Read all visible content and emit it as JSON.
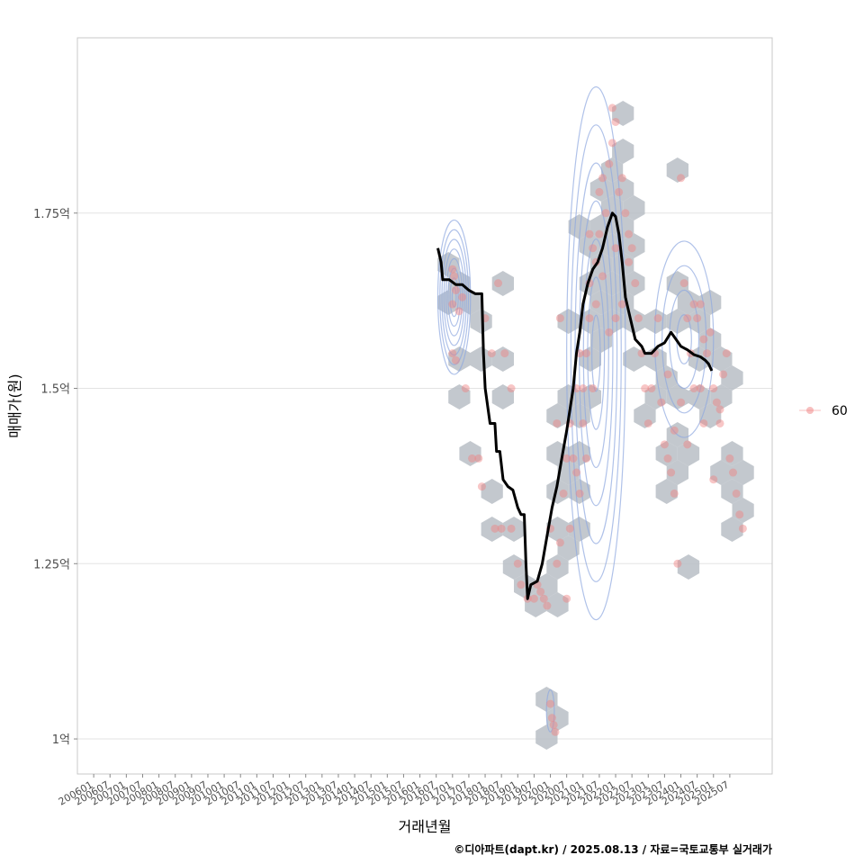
{
  "chart_data": {
    "type": "scatter",
    "title": "",
    "xlabel": "거래년월",
    "ylabel": "매매가(원)",
    "caption": "©디아파트(dapt.kr) / 2025.08.13 / 자료=국토교통부 실거래가",
    "ylim": [
      0.95,
      2.0
    ],
    "xlim": [
      2005.5,
      2026.8
    ],
    "y_ticks": [
      {
        "value": 1.0,
        "label": "1억"
      },
      {
        "value": 1.25,
        "label": "1.25억"
      },
      {
        "value": 1.5,
        "label": "1.5억"
      },
      {
        "value": 1.75,
        "label": "1.75억"
      }
    ],
    "x_ticks": [
      "200601",
      "200607",
      "200701",
      "200707",
      "200801",
      "200807",
      "200901",
      "200907",
      "201001",
      "201007",
      "201101",
      "201107",
      "201201",
      "201207",
      "201301",
      "201307",
      "201401",
      "201407",
      "201501",
      "201507",
      "201601",
      "201607",
      "201701",
      "201707",
      "201801",
      "201807",
      "201901",
      "201907",
      "202001",
      "202007",
      "202101",
      "202107",
      "202201",
      "202207",
      "202301",
      "202307",
      "202401",
      "202407",
      "202501",
      "202507"
    ],
    "legend": {
      "position": "right",
      "entries": [
        {
          "label": "60",
          "color": "#f08080"
        }
      ]
    },
    "colors": {
      "points": "#f08080",
      "trend": "#000000",
      "hex": "#b8bec6",
      "contour": "#8fa8e0",
      "grid": "#e3e3e3"
    },
    "series": [
      {
        "name": "60",
        "points": [
          [
            2017.0,
            1.67
          ],
          [
            2017.05,
            1.66
          ],
          [
            2017.1,
            1.64
          ],
          [
            2017.0,
            1.62
          ],
          [
            2017.2,
            1.61
          ],
          [
            2017.0,
            1.55
          ],
          [
            2017.1,
            1.54
          ],
          [
            2017.3,
            1.63
          ],
          [
            2017.4,
            1.5
          ],
          [
            2017.6,
            1.4
          ],
          [
            2017.8,
            1.4
          ],
          [
            2017.9,
            1.36
          ],
          [
            2018.2,
            1.55
          ],
          [
            2018.0,
            1.6
          ],
          [
            2018.4,
            1.65
          ],
          [
            2018.6,
            1.55
          ],
          [
            2018.8,
            1.5
          ],
          [
            2018.3,
            1.3
          ],
          [
            2018.5,
            1.3
          ],
          [
            2018.8,
            1.3
          ],
          [
            2019.0,
            1.25
          ],
          [
            2019.1,
            1.22
          ],
          [
            2019.3,
            1.2
          ],
          [
            2019.5,
            1.2
          ],
          [
            2019.6,
            1.22
          ],
          [
            2019.7,
            1.21
          ],
          [
            2019.8,
            1.2
          ],
          [
            2019.9,
            1.19
          ],
          [
            2020.0,
            1.05
          ],
          [
            2020.05,
            1.03
          ],
          [
            2020.1,
            1.02
          ],
          [
            2020.15,
            1.01
          ],
          [
            2020.0,
            1.3
          ],
          [
            2020.2,
            1.25
          ],
          [
            2020.3,
            1.28
          ],
          [
            2020.4,
            1.35
          ],
          [
            2020.5,
            1.4
          ],
          [
            2020.6,
            1.45
          ],
          [
            2020.7,
            1.4
          ],
          [
            2020.8,
            1.5
          ],
          [
            2020.9,
            1.55
          ],
          [
            2020.3,
            1.6
          ],
          [
            2020.2,
            1.45
          ],
          [
            2020.5,
            1.2
          ],
          [
            2020.6,
            1.3
          ],
          [
            2020.8,
            1.38
          ],
          [
            2021.0,
            1.45
          ],
          [
            2021.0,
            1.5
          ],
          [
            2021.1,
            1.55
          ],
          [
            2021.2,
            1.6
          ],
          [
            2021.2,
            1.65
          ],
          [
            2021.3,
            1.7
          ],
          [
            2021.4,
            1.68
          ],
          [
            2021.5,
            1.72
          ],
          [
            2021.5,
            1.78
          ],
          [
            2021.6,
            1.8
          ],
          [
            2021.7,
            1.75
          ],
          [
            2021.8,
            1.82
          ],
          [
            2021.9,
            1.85
          ],
          [
            2021.9,
            1.9
          ],
          [
            2022.0,
            1.88
          ],
          [
            2022.0,
            1.7
          ],
          [
            2022.1,
            1.78
          ],
          [
            2022.2,
            1.8
          ],
          [
            2022.3,
            1.75
          ],
          [
            2022.4,
            1.72
          ],
          [
            2022.5,
            1.7
          ],
          [
            2022.6,
            1.65
          ],
          [
            2022.7,
            1.6
          ],
          [
            2022.8,
            1.55
          ],
          [
            2022.9,
            1.5
          ],
          [
            2021.2,
            1.72
          ],
          [
            2021.4,
            1.62
          ],
          [
            2021.6,
            1.66
          ],
          [
            2021.8,
            1.58
          ],
          [
            2022.0,
            1.6
          ],
          [
            2022.2,
            1.62
          ],
          [
            2022.4,
            1.68
          ],
          [
            2021.3,
            1.5
          ],
          [
            2021.1,
            1.4
          ],
          [
            2020.9,
            1.35
          ],
          [
            2023.0,
            1.45
          ],
          [
            2023.1,
            1.5
          ],
          [
            2023.2,
            1.55
          ],
          [
            2023.3,
            1.6
          ],
          [
            2023.4,
            1.48
          ],
          [
            2023.5,
            1.42
          ],
          [
            2023.6,
            1.4
          ],
          [
            2023.7,
            1.38
          ],
          [
            2023.8,
            1.35
          ],
          [
            2023.9,
            1.25
          ],
          [
            2024.0,
            1.8
          ],
          [
            2024.1,
            1.65
          ],
          [
            2024.2,
            1.6
          ],
          [
            2024.3,
            1.55
          ],
          [
            2024.4,
            1.62
          ],
          [
            2024.5,
            1.6
          ],
          [
            2024.6,
            1.5
          ],
          [
            2024.7,
            1.45
          ],
          [
            2024.8,
            1.55
          ],
          [
            2024.9,
            1.58
          ],
          [
            2025.0,
            1.5
          ],
          [
            2025.1,
            1.48
          ],
          [
            2025.2,
            1.45
          ],
          [
            2025.3,
            1.52
          ],
          [
            2025.4,
            1.55
          ],
          [
            2025.5,
            1.4
          ],
          [
            2025.6,
            1.38
          ],
          [
            2025.7,
            1.35
          ],
          [
            2025.8,
            1.32
          ],
          [
            2025.9,
            1.3
          ],
          [
            2024.2,
            1.42
          ],
          [
            2024.4,
            1.5
          ],
          [
            2024.6,
            1.62
          ],
          [
            2024.7,
            1.57
          ],
          [
            2025.0,
            1.37
          ],
          [
            2025.2,
            1.47
          ],
          [
            2023.6,
            1.52
          ],
          [
            2023.8,
            1.44
          ],
          [
            2024.0,
            1.48
          ]
        ]
      }
    ],
    "trend": {
      "name": "moving-average",
      "points": [
        [
          2016.55,
          1.7
        ],
        [
          2016.65,
          1.68
        ],
        [
          2016.7,
          1.655
        ],
        [
          2016.9,
          1.655
        ],
        [
          2017.1,
          1.648
        ],
        [
          2017.3,
          1.648
        ],
        [
          2017.5,
          1.64
        ],
        [
          2017.7,
          1.635
        ],
        [
          2017.9,
          1.635
        ],
        [
          2017.95,
          1.55
        ],
        [
          2018.0,
          1.5
        ],
        [
          2018.15,
          1.45
        ],
        [
          2018.3,
          1.45
        ],
        [
          2018.35,
          1.41
        ],
        [
          2018.45,
          1.41
        ],
        [
          2018.55,
          1.37
        ],
        [
          2018.7,
          1.36
        ],
        [
          2018.85,
          1.355
        ],
        [
          2019.0,
          1.33
        ],
        [
          2019.1,
          1.32
        ],
        [
          2019.2,
          1.32
        ],
        [
          2019.25,
          1.25
        ],
        [
          2019.3,
          1.2
        ],
        [
          2019.4,
          1.22
        ],
        [
          2019.6,
          1.225
        ],
        [
          2019.75,
          1.25
        ],
        [
          2019.9,
          1.29
        ],
        [
          2020.05,
          1.33
        ],
        [
          2020.2,
          1.36
        ],
        [
          2020.35,
          1.4
        ],
        [
          2020.5,
          1.44
        ],
        [
          2020.6,
          1.47
        ],
        [
          2020.7,
          1.5
        ],
        [
          2020.8,
          1.55
        ],
        [
          2020.9,
          1.58
        ],
        [
          2021.0,
          1.62
        ],
        [
          2021.15,
          1.65
        ],
        [
          2021.3,
          1.67
        ],
        [
          2021.45,
          1.68
        ],
        [
          2021.6,
          1.7
        ],
        [
          2021.75,
          1.73
        ],
        [
          2021.9,
          1.75
        ],
        [
          2022.0,
          1.745
        ],
        [
          2022.1,
          1.72
        ],
        [
          2022.2,
          1.68
        ],
        [
          2022.3,
          1.63
        ],
        [
          2022.45,
          1.6
        ],
        [
          2022.6,
          1.57
        ],
        [
          2022.8,
          1.56
        ],
        [
          2022.9,
          1.55
        ],
        [
          2023.1,
          1.55
        ],
        [
          2023.3,
          1.56
        ],
        [
          2023.5,
          1.565
        ],
        [
          2023.7,
          1.58
        ],
        [
          2023.85,
          1.57
        ],
        [
          2024.0,
          1.56
        ],
        [
          2024.2,
          1.555
        ],
        [
          2024.4,
          1.548
        ],
        [
          2024.6,
          1.545
        ],
        [
          2024.75,
          1.54
        ],
        [
          2024.85,
          1.535
        ],
        [
          2024.95,
          1.525
        ]
      ]
    }
  }
}
